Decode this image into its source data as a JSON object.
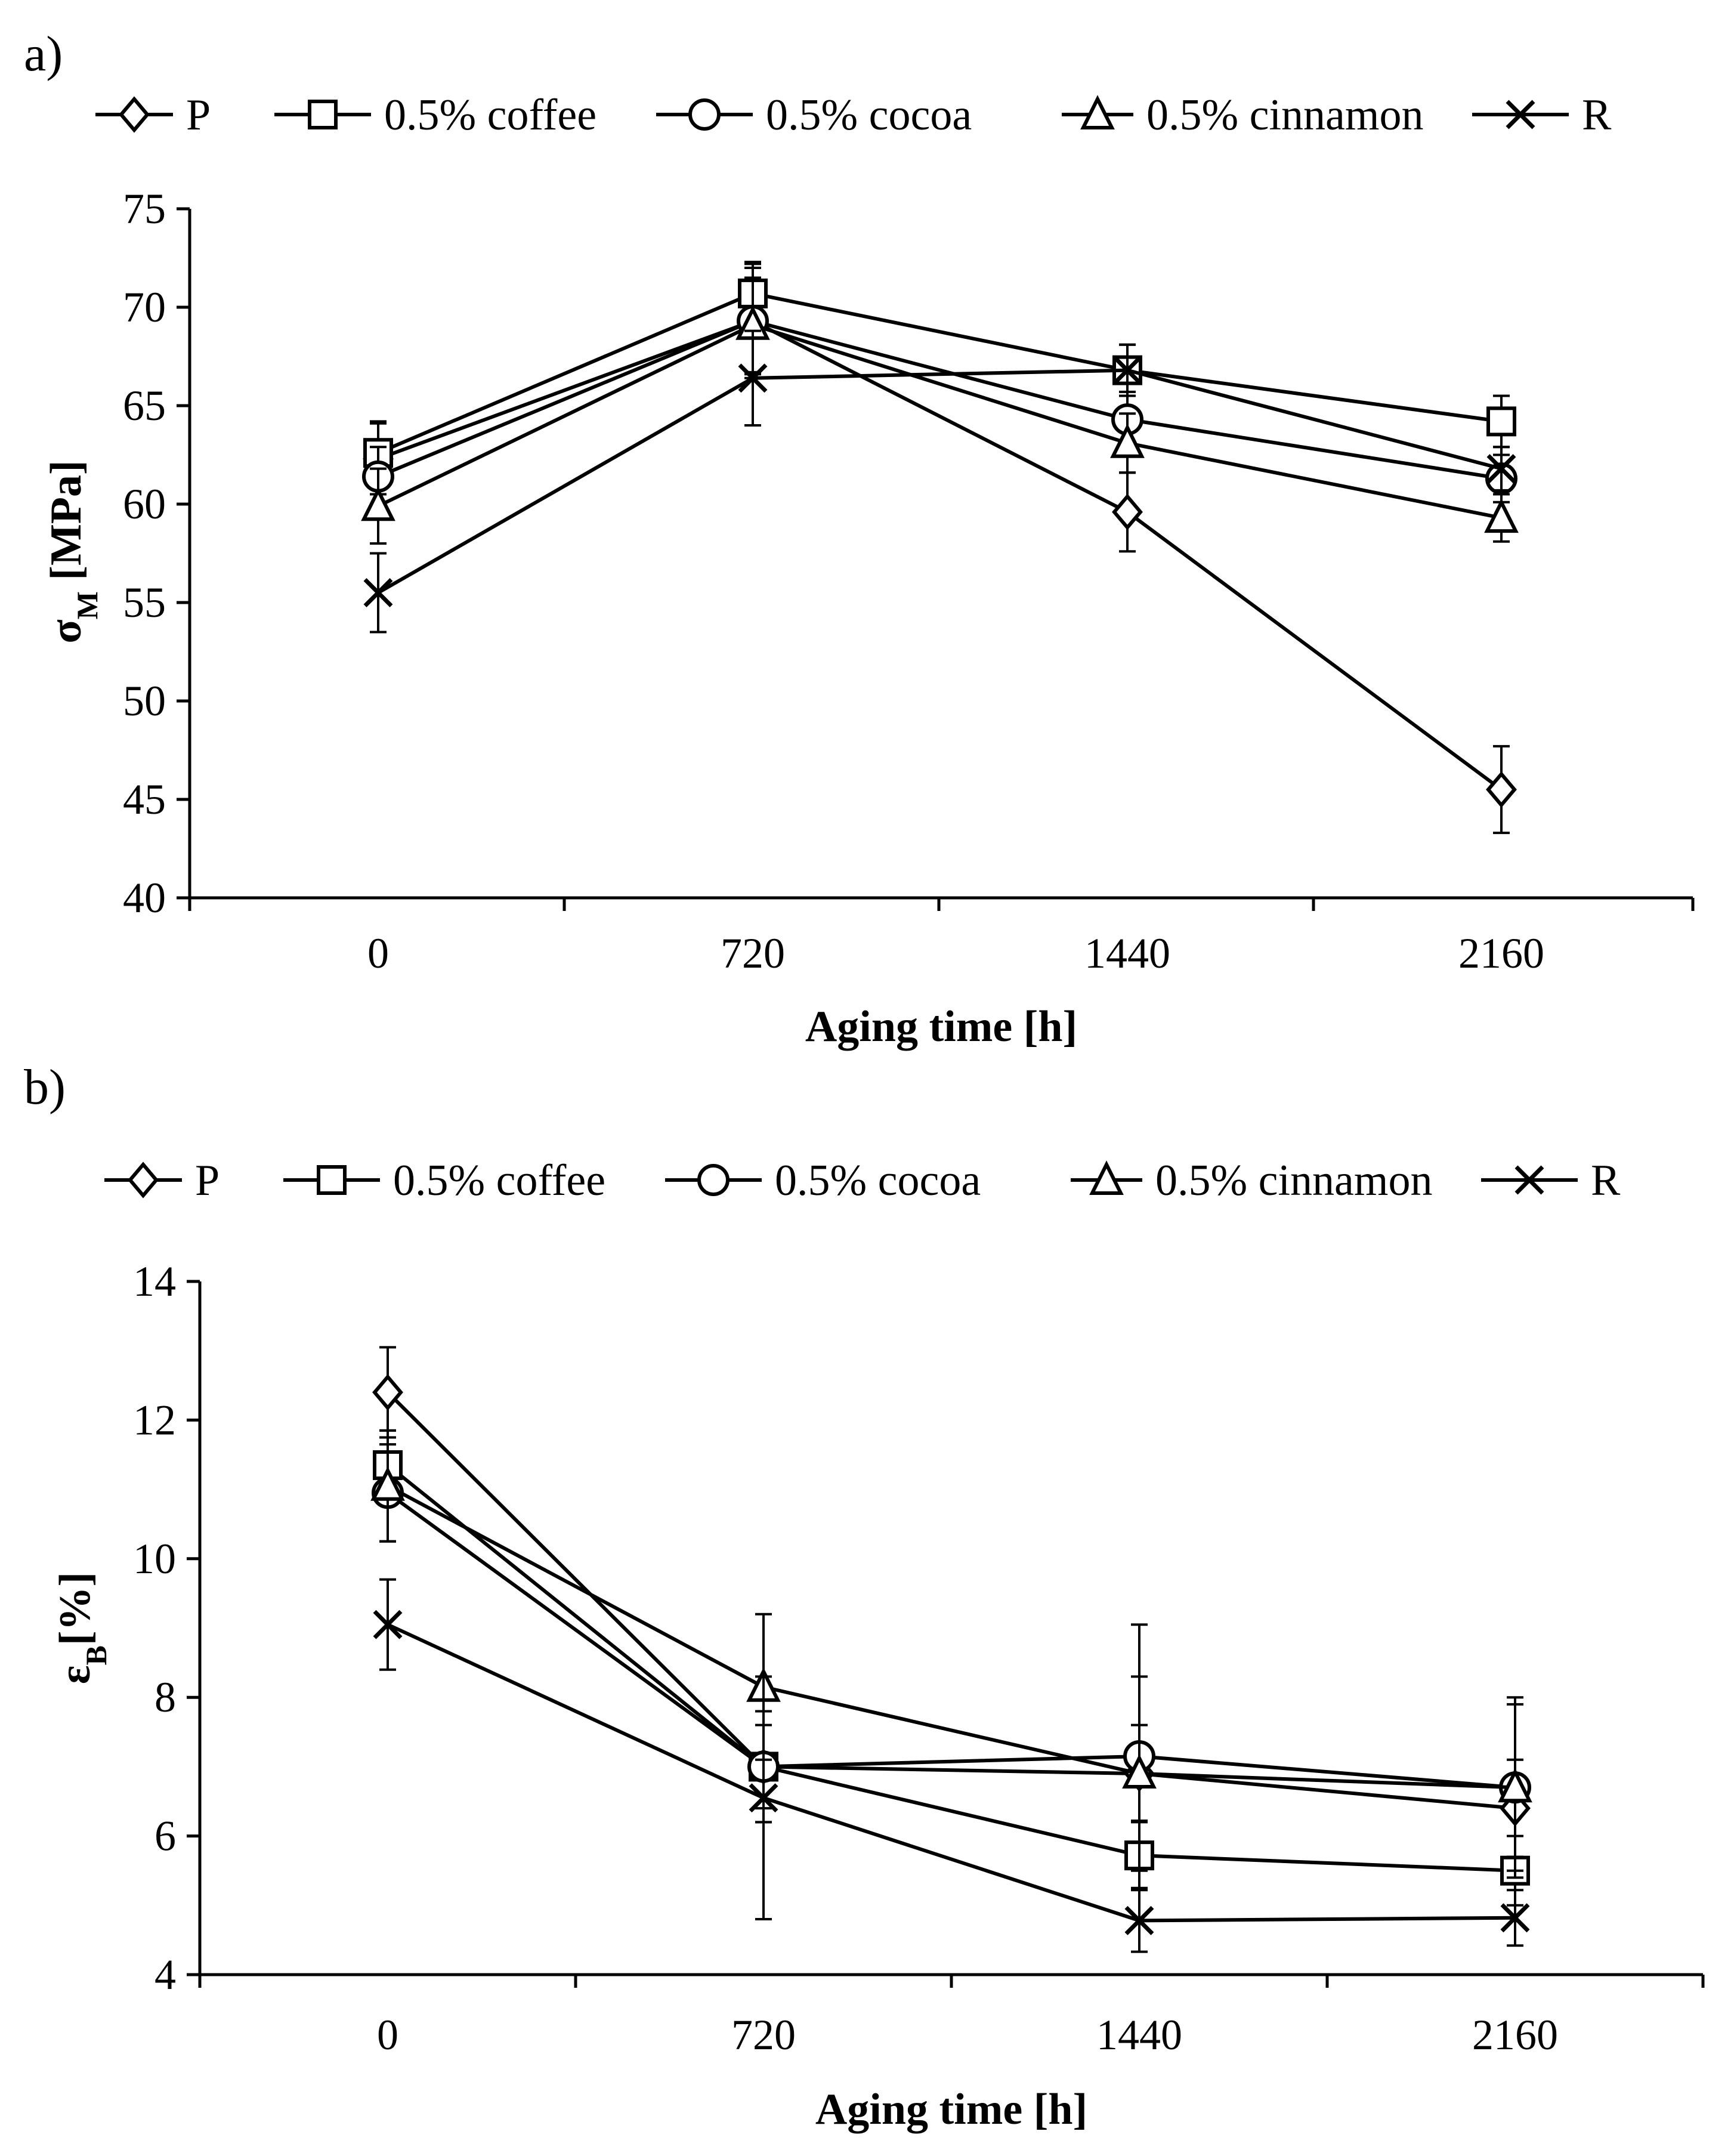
{
  "chart_data": [
    {
      "panel_label": "a)",
      "type": "line",
      "title": "",
      "xlabel": "Aging time [h]",
      "ylabel_main": "σ",
      "ylabel_sub": "M",
      "ylabel_rest": " [MPa]",
      "x": [
        0,
        720,
        1440,
        2160
      ],
      "x_tick_labels": [
        "0",
        "720",
        "1440",
        "2160"
      ],
      "ylim": [
        40,
        75
      ],
      "y_ticks": [
        40,
        45,
        50,
        55,
        60,
        65,
        70,
        75
      ],
      "y_tick_labels": [
        "40",
        "45",
        "50",
        "55",
        "60",
        "65",
        "70",
        "75"
      ],
      "legend_position": "top",
      "grid": false,
      "series": [
        {
          "name": "P",
          "marker": "diamond",
          "values": [
            62.3,
            69.3,
            59.6,
            45.5
          ],
          "errors": [
            1.8,
            2.9,
            2.0,
            2.2
          ]
        },
        {
          "name": "0.5% coffee",
          "marker": "square",
          "values": [
            62.6,
            70.7,
            66.8,
            64.2
          ],
          "errors": [
            1.6,
            1.6,
            1.3,
            1.3
          ]
        },
        {
          "name": "0.5% cocoa",
          "marker": "circle",
          "values": [
            61.4,
            69.3,
            64.3,
            61.3
          ],
          "errors": [
            1.5,
            2.7,
            1.4,
            1.2
          ]
        },
        {
          "name": "0.5% cinnamon",
          "marker": "triangle",
          "values": [
            59.9,
            69.1,
            63.1,
            59.3
          ],
          "errors": [
            1.9,
            2.4,
            1.5,
            1.2
          ]
        },
        {
          "name": "R",
          "marker": "x",
          "values": [
            55.5,
            66.4,
            66.8,
            61.8
          ],
          "errors": [
            2.0,
            2.4,
            1.3,
            1.1
          ]
        }
      ]
    },
    {
      "panel_label": "b)",
      "type": "line",
      "title": "",
      "xlabel": "Aging time [h]",
      "ylabel_main": "ε",
      "ylabel_sub": "B",
      "ylabel_rest": "[%]",
      "x": [
        0,
        720,
        1440,
        2160
      ],
      "x_tick_labels": [
        "0",
        "720",
        "1440",
        "2160"
      ],
      "ylim": [
        4,
        14
      ],
      "y_ticks": [
        4,
        6,
        8,
        10,
        12,
        14
      ],
      "y_tick_labels": [
        "4",
        "6",
        "8",
        "10",
        "12",
        "14"
      ],
      "legend_position": "top",
      "grid": false,
      "series": [
        {
          "name": "P",
          "marker": "diamond",
          "values": [
            12.4,
            7.0,
            6.9,
            6.4
          ],
          "errors": [
            0.65,
            0.6,
            0.7,
            0.7
          ]
        },
        {
          "name": "0.5% coffee",
          "marker": "square",
          "values": [
            11.35,
            7.0,
            5.72,
            5.5
          ],
          "errors": [
            0.5,
            0.8,
            0.5,
            0.5
          ]
        },
        {
          "name": "0.5% cocoa",
          "marker": "circle",
          "values": [
            10.95,
            7.0,
            7.15,
            6.7
          ],
          "errors": [
            0.7,
            0.8,
            1.9,
            1.3
          ]
        },
        {
          "name": "0.5% cinnamon",
          "marker": "triangle",
          "values": [
            11.05,
            8.15,
            6.9,
            6.7
          ],
          "errors": [
            0.8,
            1.05,
            1.4,
            1.2
          ]
        },
        {
          "name": "R",
          "marker": "x",
          "values": [
            9.05,
            6.55,
            4.78,
            4.82
          ],
          "errors": [
            0.65,
            1.75,
            0.45,
            0.4
          ]
        }
      ]
    }
  ]
}
